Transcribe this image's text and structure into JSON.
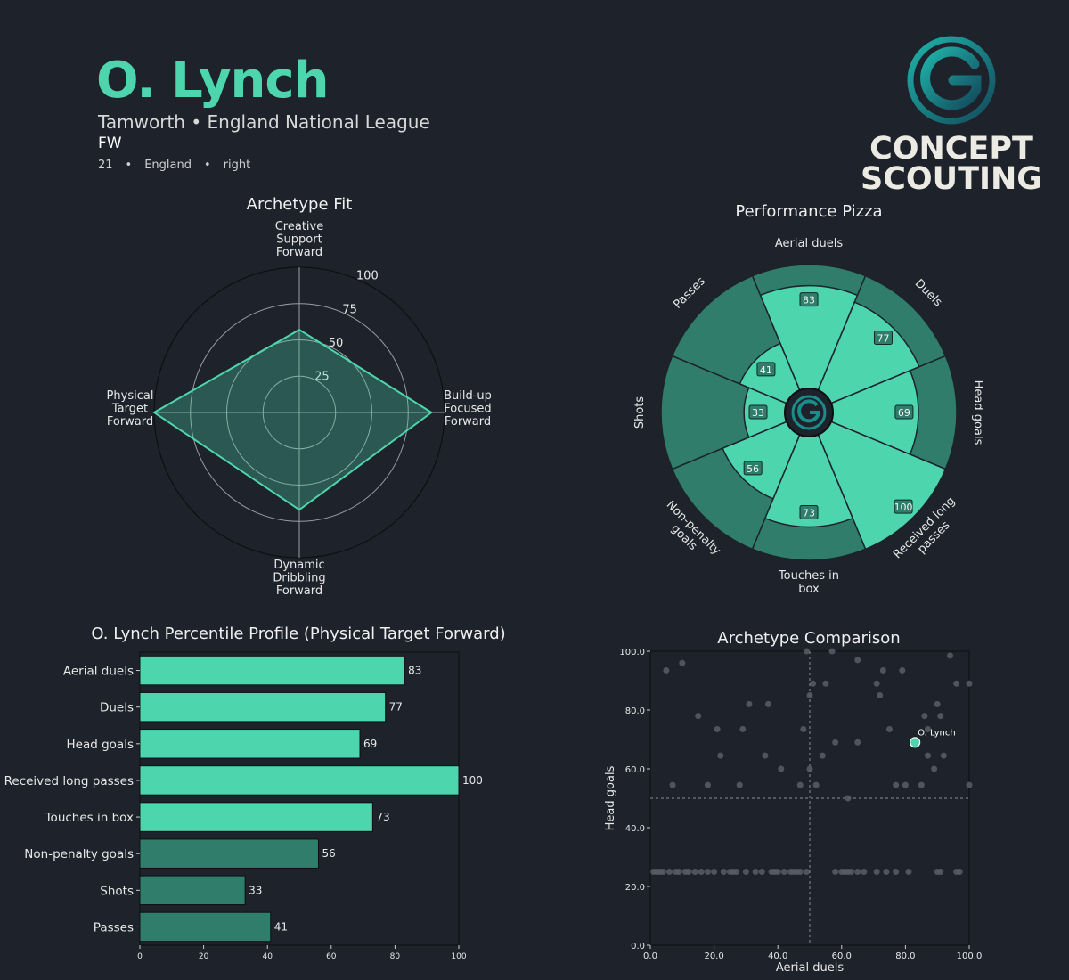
{
  "header": {
    "name": "O. Lynch",
    "club": "Tamworth",
    "league": "England National League",
    "club_sep": " • ",
    "position": "FW",
    "age": "21",
    "nation": "England",
    "foot": "right",
    "bullet": "•"
  },
  "logo": {
    "line1": "CONCEPT",
    "line2": "SCOUTING"
  },
  "colors": {
    "background": "#1d222b",
    "accent": "#4dd6ad",
    "accent_dark": "#2f7d6a",
    "text": "#e8e8e8",
    "scatter_point": "#595e66"
  },
  "chart_data": [
    {
      "id": "archetype-fit",
      "type": "radar",
      "title": "Archetype Fit",
      "axes": [
        {
          "label": [
            "Creative",
            "Support",
            "Forward"
          ],
          "value": 57
        },
        {
          "label": [
            "Build-up",
            "Focused",
            "Forward"
          ],
          "value": 91
        },
        {
          "label": [
            "Dynamic",
            "Dribbling",
            "Forward"
          ],
          "value": 67
        },
        {
          "label": [
            "Physical",
            "Target",
            "Forward"
          ],
          "value": 100
        }
      ],
      "rings": [
        25,
        50,
        75,
        100
      ],
      "range": [
        0,
        100
      ]
    },
    {
      "id": "performance-pizza",
      "type": "pizza",
      "title": "Performance Pizza",
      "slices": [
        {
          "label": [
            "Aerial duels"
          ],
          "value": 83,
          "group": "primary"
        },
        {
          "label": [
            "Duels"
          ],
          "value": 77,
          "group": "primary"
        },
        {
          "label": [
            "Head goals"
          ],
          "value": 69,
          "group": "primary"
        },
        {
          "label": [
            "Received long",
            "passes"
          ],
          "value": 100,
          "group": "primary"
        },
        {
          "label": [
            "Touches in",
            "box"
          ],
          "value": 73,
          "group": "primary"
        },
        {
          "label": [
            "Non-penalty",
            "goals"
          ],
          "value": 56,
          "group": "primary"
        },
        {
          "label": [
            "Shots"
          ],
          "value": 33,
          "group": "primary"
        },
        {
          "label": [
            "Passes"
          ],
          "value": 41,
          "group": "primary"
        }
      ],
      "range": [
        0,
        100
      ]
    },
    {
      "id": "percentile-profile",
      "type": "bar",
      "orientation": "horizontal",
      "title": "O. Lynch Percentile Profile (Physical Target Forward)",
      "categories": [
        "Aerial duels",
        "Duels",
        "Head goals",
        "Received long passes",
        "Touches in box",
        "Non-penalty goals",
        "Shots",
        "Passes"
      ],
      "values": [
        83,
        77,
        69,
        100,
        73,
        56,
        33,
        41
      ],
      "groups": [
        "primary",
        "primary",
        "primary",
        "primary",
        "primary",
        "secondary",
        "secondary",
        "secondary"
      ],
      "xlim": [
        0,
        100
      ],
      "xticks": [
        0,
        20,
        40,
        60,
        80,
        100
      ]
    },
    {
      "id": "archetype-comparison",
      "type": "scatter",
      "title": "Archetype Comparison",
      "xlabel": "Aerial duels",
      "ylabel": "Head goals",
      "xlim": [
        0,
        100
      ],
      "ylim": [
        0,
        100
      ],
      "xticks": [
        "0.0",
        "20.0",
        "40.0",
        "60.0",
        "80.0",
        "100.0"
      ],
      "yticks": [
        "0.0",
        "20.0",
        "40.0",
        "60.0",
        "80.0",
        "100.0"
      ],
      "reference_lines": {
        "x": 50,
        "y": 50
      },
      "highlight": {
        "label": "O. Lynch",
        "x": 83,
        "y": 69
      },
      "points": [
        [
          5,
          93.5
        ],
        [
          10,
          96
        ],
        [
          15,
          78
        ],
        [
          21,
          73.5
        ],
        [
          22,
          64.5
        ],
        [
          29,
          73.5
        ],
        [
          31,
          82
        ],
        [
          36,
          64.5
        ],
        [
          37,
          82
        ],
        [
          41,
          60
        ],
        [
          48,
          73.5
        ],
        [
          49,
          100
        ],
        [
          50,
          85
        ],
        [
          51,
          89
        ],
        [
          52,
          54.5
        ],
        [
          55,
          89
        ],
        [
          57,
          100
        ],
        [
          58,
          69
        ],
        [
          65,
          97
        ],
        [
          71,
          89
        ],
        [
          72,
          85
        ],
        [
          73,
          93.5
        ],
        [
          75,
          73.5
        ],
        [
          77,
          54.5
        ],
        [
          79,
          93.5
        ],
        [
          80,
          54.5
        ],
        [
          85,
          54.5
        ],
        [
          86,
          78
        ],
        [
          87,
          73.5
        ],
        [
          87,
          64.5
        ],
        [
          89,
          60
        ],
        [
          90,
          82
        ],
        [
          91,
          78
        ],
        [
          92,
          64.5
        ],
        [
          94,
          98.5
        ],
        [
          96,
          89
        ],
        [
          100,
          89
        ],
        [
          100,
          54.5
        ],
        [
          62,
          50
        ],
        [
          54,
          64.5
        ],
        [
          47,
          54.5
        ],
        [
          28,
          54.5
        ],
        [
          18,
          54.5
        ],
        [
          7,
          54.5
        ],
        [
          50,
          60
        ],
        [
          65,
          69
        ],
        [
          1,
          25
        ],
        [
          2,
          25
        ],
        [
          3,
          25
        ],
        [
          4,
          25
        ],
        [
          6,
          25
        ],
        [
          8,
          25
        ],
        [
          9,
          25
        ],
        [
          11,
          25
        ],
        [
          12,
          25
        ],
        [
          14,
          25
        ],
        [
          16,
          25
        ],
        [
          18,
          25
        ],
        [
          20,
          25
        ],
        [
          23,
          25
        ],
        [
          25,
          25
        ],
        [
          26,
          25
        ],
        [
          27,
          25
        ],
        [
          30,
          25
        ],
        [
          33,
          25
        ],
        [
          35,
          25
        ],
        [
          38,
          25
        ],
        [
          39,
          25
        ],
        [
          40,
          25
        ],
        [
          42,
          25
        ],
        [
          44,
          25
        ],
        [
          45,
          25
        ],
        [
          46,
          25
        ],
        [
          47,
          25
        ],
        [
          49,
          25
        ],
        [
          58,
          25
        ],
        [
          60,
          25
        ],
        [
          61,
          25
        ],
        [
          62,
          25
        ],
        [
          63,
          25
        ],
        [
          65,
          25
        ],
        [
          67,
          25
        ],
        [
          71,
          25
        ],
        [
          74,
          25
        ],
        [
          77,
          25
        ],
        [
          81,
          25
        ],
        [
          90,
          25
        ],
        [
          91,
          25
        ],
        [
          96,
          25
        ],
        [
          97,
          25
        ]
      ]
    }
  ]
}
